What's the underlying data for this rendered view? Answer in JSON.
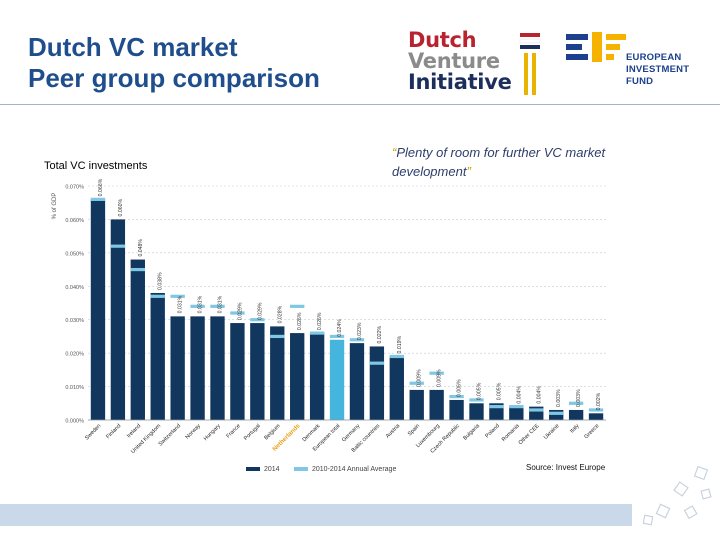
{
  "slide": {
    "title_line1": "Dutch VC market",
    "title_line2": "Peer group comparison",
    "chart_caption": "Total VC investments",
    "quote_open": "“",
    "quote_body": "Plenty of room for further VC market development",
    "quote_close": "”",
    "source": "Source: Invest Europe"
  },
  "logos": {
    "dvi_line1": "Dutch",
    "dvi_line2": "Venture",
    "dvi_line3": "Initiative",
    "eif_line1": "EUROPEAN",
    "eif_line2": "INVESTMENT",
    "eif_line3": "FUND"
  },
  "colors": {
    "title": "#1f4e8c",
    "bar_2014": "#12375e",
    "bar_highlight": "#45b5dd",
    "avg_marker": "#7fc7e3",
    "netherlands_label": "#e8a014",
    "footer_band": "#c9d9ea"
  },
  "chart_data": {
    "type": "bar",
    "title": "",
    "ylabel": "% of GDP",
    "xlabel": "",
    "ylim": [
      0,
      0.07
    ],
    "yticks": [
      "0.000%",
      "0.010%",
      "0.020%",
      "0.030%",
      "0.040%",
      "0.050%",
      "0.060%",
      "0.070%"
    ],
    "grid": true,
    "legend_position": "bottom",
    "highlight_category": "European total",
    "categories": [
      "Sweden",
      "Finland",
      "Ireland",
      "United Kingdom",
      "Switzerland",
      "Norway",
      "Hungary",
      "France",
      "Portugal",
      "Belgium",
      "Netherlands",
      "Denmark",
      "European total",
      "Germany",
      "Baltic countries",
      "Austria",
      "Spain",
      "Luxembourg",
      "Czech Republic",
      "Bulgaria",
      "Poland",
      "Romania",
      "Other CEE",
      "Ukraine",
      "Italy",
      "Greece"
    ],
    "series": [
      {
        "name": "2014",
        "values": [
          0.066,
          0.06,
          0.048,
          0.038,
          0.031,
          0.031,
          0.031,
          0.029,
          0.029,
          0.028,
          0.026,
          0.026,
          0.024,
          0.023,
          0.022,
          0.019,
          0.009,
          0.009,
          0.006,
          0.005,
          0.005,
          0.004,
          0.004,
          0.003,
          0.003,
          0.002
        ],
        "labels": [
          "0.066%",
          "0.060%",
          "0.048%",
          "0.038%",
          "0.031%",
          "0.031%",
          "0.031%",
          "0.029%",
          "0.029%",
          "0.028%",
          "0.026%",
          "0.026%",
          "0.024%",
          "0.023%",
          "0.022%",
          "0.019%",
          "0.009%",
          "0.009%",
          "0.006%",
          "0.005%",
          "0.005%",
          "0.004%",
          "0.004%",
          "0.003%",
          "0.003%",
          "0.002%"
        ]
      },
      {
        "name": "2010-2014 Annual Average",
        "values": [
          0.066,
          0.052,
          0.045,
          0.037,
          0.037,
          0.034,
          0.034,
          0.032,
          0.03,
          0.025,
          0.034,
          0.026,
          0.025,
          0.024,
          0.017,
          0.019,
          0.011,
          0.014,
          0.007,
          0.006,
          0.004,
          0.004,
          0.003,
          0.002,
          0.005,
          0.003
        ]
      }
    ]
  }
}
